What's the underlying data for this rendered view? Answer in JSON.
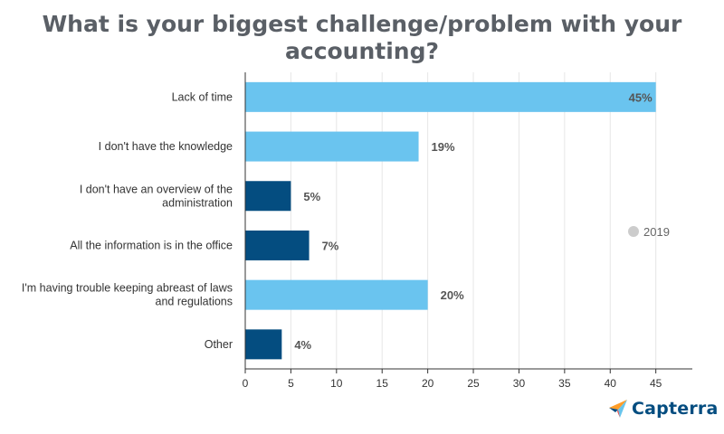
{
  "chart_data": {
    "type": "bar",
    "orientation": "horizontal",
    "title": "What is your biggest challenge/problem with your accounting?",
    "categories": [
      "Lack of time",
      "I don't have the knowledge",
      "I don't have an overview of the administration",
      "All the information is in the office",
      "I'm having trouble keeping abreast of laws and regulations",
      "Other"
    ],
    "category_lines": [
      [
        "Lack of time"
      ],
      [
        "I don't have the knowledge"
      ],
      [
        "I don't have an overview of the",
        "administration"
      ],
      [
        "All the information is in the office"
      ],
      [
        "I'm having trouble keeping abreast of laws",
        "and regulations"
      ],
      [
        "Other"
      ]
    ],
    "values": [
      45,
      19,
      5,
      7,
      20,
      4
    ],
    "value_labels": [
      "45%",
      "19%",
      "5%",
      "7%",
      "20%",
      "4%"
    ],
    "bar_colors": [
      "#6ac4ef",
      "#6ac4ef",
      "#044d80",
      "#044d80",
      "#6ac4ef",
      "#044d80"
    ],
    "xlim": [
      0,
      49
    ],
    "xticks": [
      0,
      5,
      10,
      15,
      20,
      25,
      30,
      35,
      40,
      45
    ],
    "grid": true,
    "legend": {
      "placement": "right",
      "entries": [
        {
          "name": "2019",
          "color": "#cccccc"
        }
      ]
    },
    "xlabel": "",
    "ylabel": ""
  },
  "branding": {
    "name": "Capterra",
    "logo_icon": "capterra-arrow-icon"
  }
}
